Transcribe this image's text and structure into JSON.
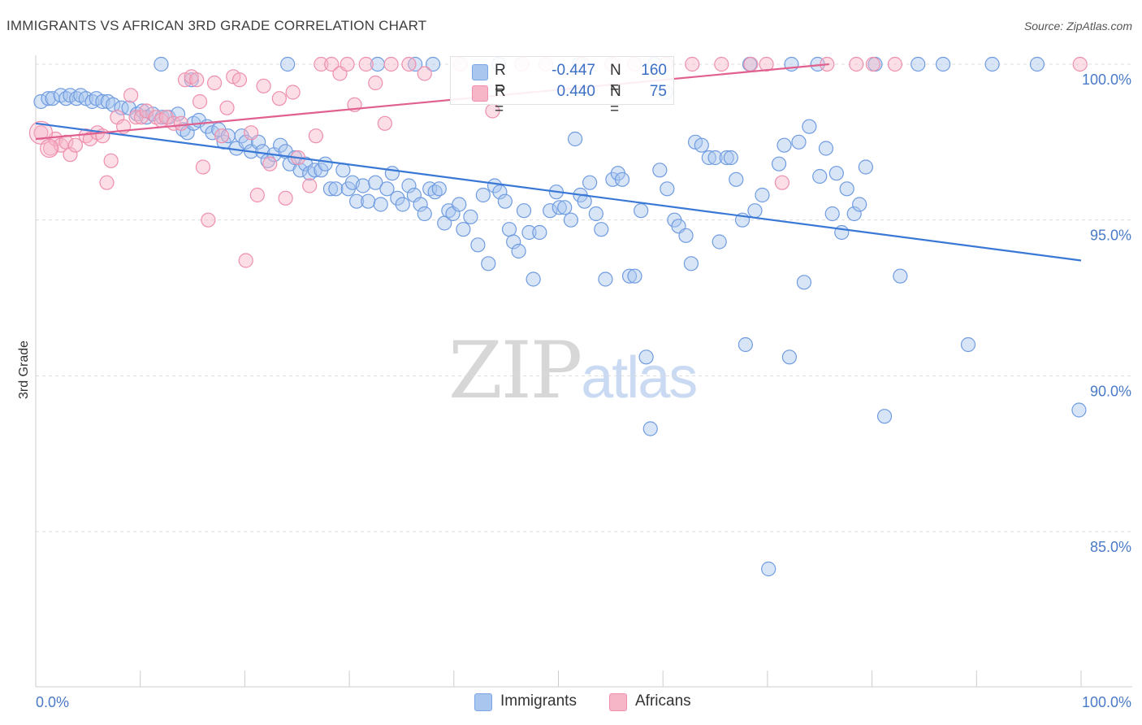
{
  "title": "IMMIGRANTS VS AFRICAN 3RD GRADE CORRELATION CHART",
  "source": "Source: ZipAtlas.com",
  "watermark": {
    "zip": "ZIP",
    "atlas": "atlas"
  },
  "legend": {
    "rows": [
      {
        "r_label": "R =",
        "r_value": "-0.447",
        "n_label": "N =",
        "n_value": "160",
        "color": "#a9c6ee",
        "stroke": "#7aa6e6"
      },
      {
        "r_label": "R =",
        "r_value": "0.440",
        "n_label": "N =",
        "n_value": "75",
        "color": "#f7b6c8",
        "stroke": "#ef8fae"
      }
    ]
  },
  "bottom_legend": [
    {
      "label": "Immigrants",
      "color": "#a9c6ee"
    },
    {
      "label": "Africans",
      "color": "#f7b6c8"
    }
  ],
  "chart_data": {
    "type": "scatter",
    "xlabel": "",
    "ylabel": "3rd Grade",
    "xlim": [
      0,
      100
    ],
    "ylim": [
      80.5,
      100.3
    ],
    "x_tick_labels": [
      "0.0%",
      "100.0%"
    ],
    "y_ticks": [
      85,
      90,
      95,
      100
    ],
    "y_tick_labels": [
      "85.0%",
      "90.0%",
      "95.0%",
      "100.0%"
    ],
    "grid": true,
    "colors": {
      "immigrants": "#3a78d6",
      "immigrants_fill": "#a9c6ee",
      "africans": "#e0608f",
      "africans_fill": "#f7b6c8"
    },
    "series": [
      {
        "name": "Immigrants",
        "trend": {
          "x": [
            0,
            100
          ],
          "y": [
            98.1,
            93.7
          ]
        },
        "points": [
          [
            0.5,
            98.8
          ],
          [
            1.2,
            98.9
          ],
          [
            1.6,
            98.9
          ],
          [
            2.4,
            99.0
          ],
          [
            2.9,
            98.9
          ],
          [
            3.3,
            99.0
          ],
          [
            3.9,
            98.9
          ],
          [
            4.3,
            99.0
          ],
          [
            4.8,
            98.9
          ],
          [
            5.4,
            98.8
          ],
          [
            5.8,
            98.9
          ],
          [
            6.4,
            98.8
          ],
          [
            6.9,
            98.8
          ],
          [
            7.4,
            98.7
          ],
          [
            8.2,
            98.6
          ],
          [
            8.9,
            98.6
          ],
          [
            9.7,
            98.4
          ],
          [
            10.2,
            98.5
          ],
          [
            10.6,
            98.3
          ],
          [
            11.2,
            98.4
          ],
          [
            12.1,
            98.3
          ],
          [
            12.7,
            98.3
          ],
          [
            13.6,
            98.4
          ],
          [
            14.1,
            97.9
          ],
          [
            14.5,
            97.8
          ],
          [
            15.1,
            98.1
          ],
          [
            15.6,
            98.2
          ],
          [
            16.4,
            98.0
          ],
          [
            16.9,
            97.8
          ],
          [
            17.5,
            97.9
          ],
          [
            18.0,
            97.5
          ],
          [
            18.4,
            97.7
          ],
          [
            19.2,
            97.3
          ],
          [
            19.7,
            97.7
          ],
          [
            20.1,
            97.5
          ],
          [
            20.6,
            97.2
          ],
          [
            21.3,
            97.5
          ],
          [
            21.7,
            97.2
          ],
          [
            22.2,
            96.9
          ],
          [
            22.8,
            97.1
          ],
          [
            23.4,
            97.4
          ],
          [
            23.9,
            97.2
          ],
          [
            24.3,
            96.8
          ],
          [
            24.8,
            97.0
          ],
          [
            25.3,
            96.6
          ],
          [
            25.8,
            96.8
          ],
          [
            26.2,
            96.5
          ],
          [
            26.7,
            96.6
          ],
          [
            27.3,
            96.6
          ],
          [
            27.7,
            96.8
          ],
          [
            28.2,
            96.0
          ],
          [
            28.7,
            96.0
          ],
          [
            29.4,
            96.6
          ],
          [
            29.9,
            96.0
          ],
          [
            30.3,
            96.2
          ],
          [
            30.7,
            95.6
          ],
          [
            31.3,
            96.1
          ],
          [
            31.8,
            95.6
          ],
          [
            32.5,
            96.2
          ],
          [
            33.0,
            95.5
          ],
          [
            33.6,
            96.0
          ],
          [
            34.1,
            96.5
          ],
          [
            34.6,
            95.7
          ],
          [
            35.1,
            95.5
          ],
          [
            35.7,
            96.1
          ],
          [
            36.2,
            95.8
          ],
          [
            36.8,
            95.5
          ],
          [
            37.2,
            95.2
          ],
          [
            37.7,
            96.0
          ],
          [
            38.2,
            95.9
          ],
          [
            38.6,
            96.0
          ],
          [
            39.1,
            94.9
          ],
          [
            39.5,
            95.3
          ],
          [
            39.9,
            95.2
          ],
          [
            40.5,
            95.5
          ],
          [
            40.9,
            94.7
          ],
          [
            41.6,
            95.1
          ],
          [
            42.3,
            94.2
          ],
          [
            42.8,
            95.8
          ],
          [
            43.3,
            93.6
          ],
          [
            43.9,
            96.1
          ],
          [
            44.4,
            95.9
          ],
          [
            44.9,
            95.6
          ],
          [
            45.3,
            94.7
          ],
          [
            45.7,
            94.3
          ],
          [
            46.2,
            94.0
          ],
          [
            46.7,
            95.3
          ],
          [
            47.2,
            94.6
          ],
          [
            47.6,
            93.1
          ],
          [
            48.2,
            94.6
          ],
          [
            49.2,
            95.3
          ],
          [
            49.8,
            95.9
          ],
          [
            50.1,
            95.4
          ],
          [
            50.6,
            95.4
          ],
          [
            51.2,
            95.0
          ],
          [
            51.6,
            97.6
          ],
          [
            52.1,
            95.8
          ],
          [
            52.5,
            95.6
          ],
          [
            53.0,
            96.2
          ],
          [
            53.6,
            95.2
          ],
          [
            54.1,
            94.7
          ],
          [
            54.5,
            93.1
          ],
          [
            55.2,
            96.3
          ],
          [
            55.7,
            96.5
          ],
          [
            56.1,
            96.3
          ],
          [
            56.8,
            93.2
          ],
          [
            57.3,
            93.2
          ],
          [
            57.9,
            95.3
          ],
          [
            58.4,
            90.6
          ],
          [
            58.8,
            88.3
          ],
          [
            59.7,
            96.6
          ],
          [
            60.4,
            96.0
          ],
          [
            61.1,
            95.0
          ],
          [
            61.5,
            94.8
          ],
          [
            62.2,
            94.5
          ],
          [
            62.7,
            93.6
          ],
          [
            63.1,
            97.5
          ],
          [
            63.7,
            97.4
          ],
          [
            64.4,
            97.0
          ],
          [
            65.0,
            97.0
          ],
          [
            65.4,
            94.3
          ],
          [
            66.1,
            97.0
          ],
          [
            66.5,
            97.0
          ],
          [
            67.0,
            96.3
          ],
          [
            67.6,
            95.0
          ],
          [
            67.9,
            91.0
          ],
          [
            68.8,
            95.3
          ],
          [
            69.5,
            95.8
          ],
          [
            70.1,
            83.8
          ],
          [
            71.1,
            96.8
          ],
          [
            71.6,
            97.4
          ],
          [
            72.1,
            90.6
          ],
          [
            73.0,
            97.5
          ],
          [
            73.5,
            93.0
          ],
          [
            74.0,
            98.0
          ],
          [
            75.0,
            96.4
          ],
          [
            75.6,
            97.3
          ],
          [
            76.2,
            95.2
          ],
          [
            76.6,
            96.5
          ],
          [
            77.1,
            94.6
          ],
          [
            77.6,
            96.0
          ],
          [
            78.3,
            95.2
          ],
          [
            78.8,
            95.5
          ],
          [
            79.4,
            96.7
          ],
          [
            81.2,
            88.7
          ],
          [
            82.7,
            93.2
          ],
          [
            84.4,
            100.0
          ],
          [
            89.2,
            91.0
          ],
          [
            91.5,
            100.0
          ],
          [
            99.8,
            88.9
          ],
          [
            12.0,
            100.0
          ],
          [
            36.3,
            100.0
          ],
          [
            68.3,
            100.0
          ],
          [
            72.3,
            100.0
          ],
          [
            80.3,
            100.0
          ],
          [
            74.8,
            100.0
          ],
          [
            86.8,
            100.0
          ],
          [
            44.3,
            100.0
          ],
          [
            60.3,
            99.1
          ],
          [
            59.2,
            100.0
          ],
          [
            24.1,
            100.0
          ],
          [
            32.7,
            100.0
          ],
          [
            38.0,
            100.0
          ],
          [
            52.0,
            100.0
          ],
          [
            95.8,
            100.0
          ],
          [
            14.9,
            99.5
          ]
        ]
      },
      {
        "name": "Africans",
        "trend": {
          "x": [
            0,
            75.9
          ],
          "y": [
            97.6,
            100.0
          ]
        },
        "points": [
          [
            0.5,
            97.8
          ],
          [
            1.4,
            97.3
          ],
          [
            1.9,
            97.6
          ],
          [
            2.4,
            97.4
          ],
          [
            2.9,
            97.5
          ],
          [
            3.3,
            97.1
          ],
          [
            3.8,
            97.4
          ],
          [
            4.8,
            97.7
          ],
          [
            5.2,
            97.6
          ],
          [
            5.9,
            97.8
          ],
          [
            6.4,
            97.7
          ],
          [
            6.8,
            96.2
          ],
          [
            7.2,
            96.9
          ],
          [
            7.8,
            98.3
          ],
          [
            8.4,
            98.0
          ],
          [
            9.1,
            99.0
          ],
          [
            9.6,
            98.3
          ],
          [
            10.1,
            98.3
          ],
          [
            10.6,
            98.5
          ],
          [
            11.5,
            98.3
          ],
          [
            12.0,
            98.2
          ],
          [
            12.5,
            98.3
          ],
          [
            13.2,
            98.1
          ],
          [
            13.9,
            98.1
          ],
          [
            14.3,
            99.5
          ],
          [
            14.9,
            99.6
          ],
          [
            15.4,
            99.5
          ],
          [
            15.7,
            98.8
          ],
          [
            16.0,
            96.7
          ],
          [
            16.5,
            95.0
          ],
          [
            17.1,
            99.4
          ],
          [
            17.8,
            97.7
          ],
          [
            18.3,
            98.6
          ],
          [
            18.9,
            99.6
          ],
          [
            19.5,
            99.5
          ],
          [
            20.1,
            93.7
          ],
          [
            20.6,
            97.8
          ],
          [
            21.2,
            95.8
          ],
          [
            21.8,
            99.3
          ],
          [
            22.4,
            96.8
          ],
          [
            23.3,
            98.9
          ],
          [
            23.9,
            95.7
          ],
          [
            24.6,
            99.1
          ],
          [
            25.1,
            97.0
          ],
          [
            26.2,
            96.1
          ],
          [
            26.8,
            97.7
          ],
          [
            27.3,
            100.0
          ],
          [
            28.3,
            100.0
          ],
          [
            29.1,
            99.7
          ],
          [
            29.8,
            100.0
          ],
          [
            30.5,
            98.7
          ],
          [
            31.6,
            100.0
          ],
          [
            32.5,
            99.4
          ],
          [
            33.4,
            98.1
          ],
          [
            34.0,
            100.0
          ],
          [
            35.7,
            100.0
          ],
          [
            37.2,
            99.7
          ],
          [
            40.6,
            100.0
          ],
          [
            43.7,
            98.5
          ],
          [
            46.5,
            100.0
          ],
          [
            48.8,
            100.0
          ],
          [
            52.3,
            100.0
          ],
          [
            55.1,
            100.0
          ],
          [
            57.3,
            100.0
          ],
          [
            60.3,
            100.0
          ],
          [
            62.8,
            100.0
          ],
          [
            65.6,
            100.0
          ],
          [
            68.4,
            100.0
          ],
          [
            69.9,
            100.0
          ],
          [
            71.4,
            96.2
          ],
          [
            75.7,
            100.0
          ],
          [
            78.5,
            100.0
          ],
          [
            80.1,
            100.0
          ],
          [
            82.2,
            100.0
          ],
          [
            99.9,
            100.0
          ]
        ]
      }
    ]
  }
}
